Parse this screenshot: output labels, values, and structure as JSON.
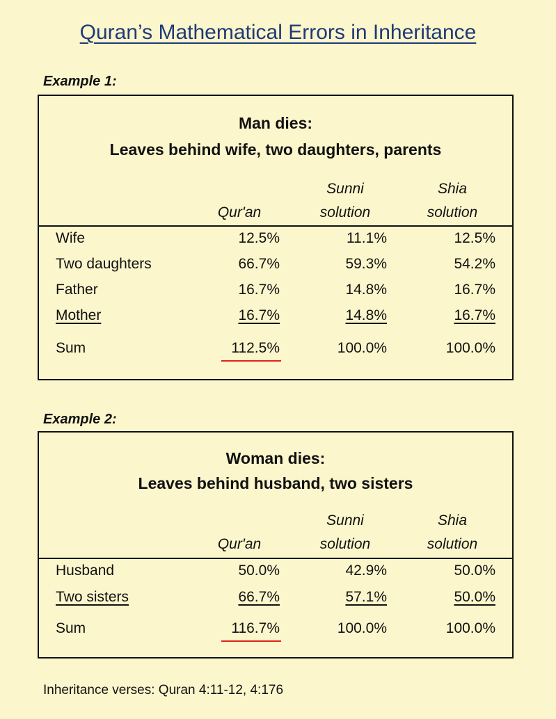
{
  "title": "Quran’s Mathematical Errors in Inheritance",
  "columns": {
    "quran": "Qur'an",
    "sunni_top": "Sunni",
    "sunni_bottom": "solution",
    "shia_top": "Shia",
    "shia_bottom": "solution"
  },
  "example1": {
    "label": "Example 1:",
    "heading1": "Man dies:",
    "heading2": "Leaves behind wife, two daughters, parents",
    "rows": [
      {
        "label": "Wife",
        "quran": "12.5%",
        "sunni": "11.1%",
        "shia": "12.5%"
      },
      {
        "label": "Two daughters",
        "quran": "66.7%",
        "sunni": "59.3%",
        "shia": "54.2%"
      },
      {
        "label": "Father",
        "quran": "16.7%",
        "sunni": "14.8%",
        "shia": "16.7%"
      },
      {
        "label": "Mother",
        "quran": "16.7%",
        "sunni": "14.8%",
        "shia": "16.7%"
      }
    ],
    "sum": {
      "label": "Sum",
      "quran": "112.5%",
      "sunni": "100.0%",
      "shia": "100.0%"
    }
  },
  "example2": {
    "label": "Example 2:",
    "heading1": "Woman dies:",
    "heading2": "Leaves behind husband, two sisters",
    "rows": [
      {
        "label": "Husband",
        "quran": "50.0%",
        "sunni": "42.9%",
        "shia": "50.0%"
      },
      {
        "label": "Two sisters",
        "quran": "66.7%",
        "sunni": "57.1%",
        "shia": "50.0%"
      }
    ],
    "sum": {
      "label": "Sum",
      "quran": "116.7%",
      "sunni": "100.0%",
      "shia": "100.0%"
    }
  },
  "footnote": "Inheritance verses: Quran 4:11-12, 4:176",
  "colors": {
    "background": "#fcf6cc",
    "title": "#1f3a78",
    "highlight_underline": "#e0221b"
  }
}
